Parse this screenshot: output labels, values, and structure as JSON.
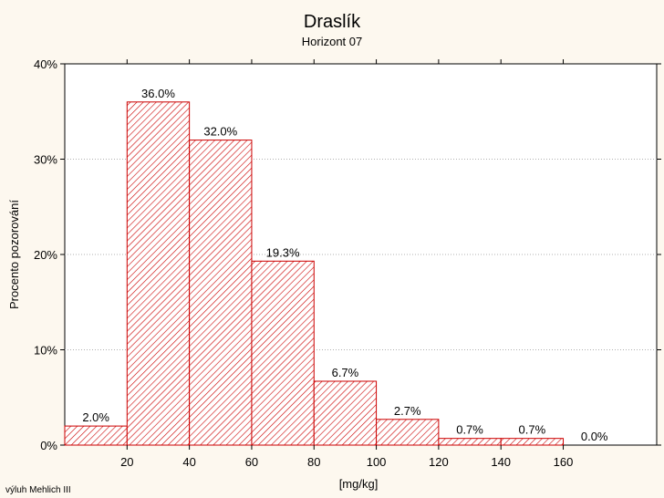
{
  "chart_data": {
    "type": "bar",
    "title": "Draslík",
    "subtitle": "Horizont 07",
    "xlabel": "[mg/kg]",
    "ylabel": "Procento pozorování",
    "footnote": "výluh Mehlich III",
    "bins": [
      {
        "from": 0,
        "to": 20,
        "value": 2.0,
        "label": "2.0%"
      },
      {
        "from": 20,
        "to": 40,
        "value": 36.0,
        "label": "36.0%"
      },
      {
        "from": 40,
        "to": 60,
        "value": 32.0,
        "label": "32.0%"
      },
      {
        "from": 60,
        "to": 80,
        "value": 19.3,
        "label": "19.3%"
      },
      {
        "from": 80,
        "to": 100,
        "value": 6.7,
        "label": "6.7%"
      },
      {
        "from": 100,
        "to": 120,
        "value": 2.7,
        "label": "2.7%"
      },
      {
        "from": 120,
        "to": 140,
        "value": 0.7,
        "label": "0.7%"
      },
      {
        "from": 140,
        "to": 160,
        "value": 0.7,
        "label": "0.7%"
      },
      {
        "from": 160,
        "to": 180,
        "value": 0.0,
        "label": "0.0%"
      }
    ],
    "xlim": [
      0,
      190
    ],
    "ylim": [
      0,
      40
    ],
    "x_ticks": [
      {
        "value": 20,
        "label": "20"
      },
      {
        "value": 40,
        "label": "40"
      },
      {
        "value": 60,
        "label": "60"
      },
      {
        "value": 80,
        "label": "80"
      },
      {
        "value": 100,
        "label": "100"
      },
      {
        "value": 120,
        "label": "120"
      },
      {
        "value": 140,
        "label": "140"
      },
      {
        "value": 160,
        "label": "160"
      }
    ],
    "y_ticks": [
      {
        "value": 0,
        "label": "0%"
      },
      {
        "value": 10,
        "label": "10%"
      },
      {
        "value": 20,
        "label": "20%"
      },
      {
        "value": 30,
        "label": "30%"
      },
      {
        "value": 40,
        "label": "40%"
      }
    ],
    "grid": true,
    "colors": {
      "bar_edge": "#cc0000",
      "hatch": "#cc0000",
      "bar_fill": "#ffffff",
      "grid": "#b0b0b0",
      "background": "#fdf8ef"
    }
  }
}
